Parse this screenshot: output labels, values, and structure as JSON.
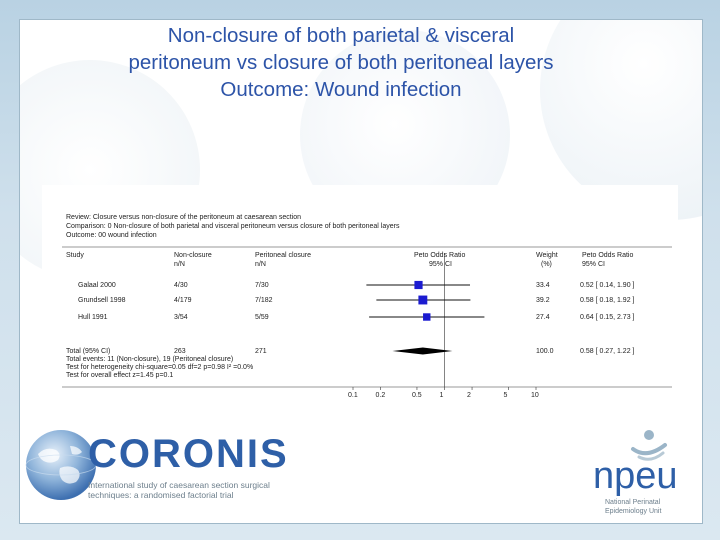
{
  "slide": {
    "title_lines": [
      "Non-closure of both parietal & visceral",
      "peritoneum vs closure of both peritoneal layers",
      "Outcome: Wound infection"
    ]
  },
  "forest_plot": {
    "review": "Review:   Closure versus non-closure of the peritoneum at caesarean section",
    "comparison": "Comparison:  0   Non-closure of both parietal and visceral peritoneum versus closure of both peritoneal layers",
    "outcome": "Outcome:   00 wound infection",
    "headers": {
      "study": "Study",
      "group1_line1": "Non-closure",
      "group1_line2": "n/N",
      "group2_line1": "Peritoneal closure",
      "group2_line2": "n/N",
      "effect_line1": "Peto Odds Ratio",
      "effect_line2": "95% CI",
      "weight_line1": "Weight",
      "weight_line2": "(%)",
      "or_line1": "Peto Odds Ratio",
      "or_line2": "95% CI"
    },
    "studies": [
      {
        "name": "Galaal 2000",
        "g1": "4/30",
        "g2": "7/30",
        "weight": "33.4",
        "ci_text": "0.52 [ 0.14, 1.90 ]",
        "or": 0.52,
        "lo": 0.14,
        "hi": 1.9
      },
      {
        "name": "Grundsell 1998",
        "g1": "4/179",
        "g2": "7/182",
        "weight": "39.2",
        "ci_text": "0.58 [ 0.18, 1.92 ]",
        "or": 0.58,
        "lo": 0.18,
        "hi": 1.92
      },
      {
        "name": "Hull 1991",
        "g1": "3/54",
        "g2": "5/59",
        "weight": "27.4",
        "ci_text": "0.64 [ 0.15, 2.73 ]",
        "or": 0.64,
        "lo": 0.15,
        "hi": 2.73
      }
    ],
    "total": {
      "name": "Total (95% CI)",
      "g1": "263",
      "g2": "271",
      "weight": "100.0",
      "ci_text": "0.58 [ 0.27, 1.22 ]",
      "or": 0.58,
      "lo": 0.27,
      "hi": 1.22
    },
    "total_events": "Total events: 11 (Non-closure), 19 (Peritoneal closure)",
    "heterogeneity": "Test for heterogeneity chi-square=0.05 df=2 p=0.98 I² =0.0%",
    "overall_effect": "Test for overall effect z=1.45  p=0.1",
    "axis_ticks": [
      "0.1",
      "0.2",
      "0.5",
      "1",
      "2",
      "5",
      "10"
    ],
    "axis_tick_values": [
      0.1,
      0.2,
      0.5,
      1,
      2,
      5,
      10
    ],
    "axis_range": [
      0.1,
      10
    ],
    "axis_scale": "log",
    "marker_color": "#1b1bd0"
  },
  "logos": {
    "coronis_name": "CORONIS",
    "coronis_sub_line1": "International study of caesarean section surgical",
    "coronis_sub_line2": "techniques: a randomised factorial trial",
    "npeu_name": "npeu",
    "npeu_sub_line1": "National Perinatal",
    "npeu_sub_line2": "Epidemiology Unit"
  }
}
